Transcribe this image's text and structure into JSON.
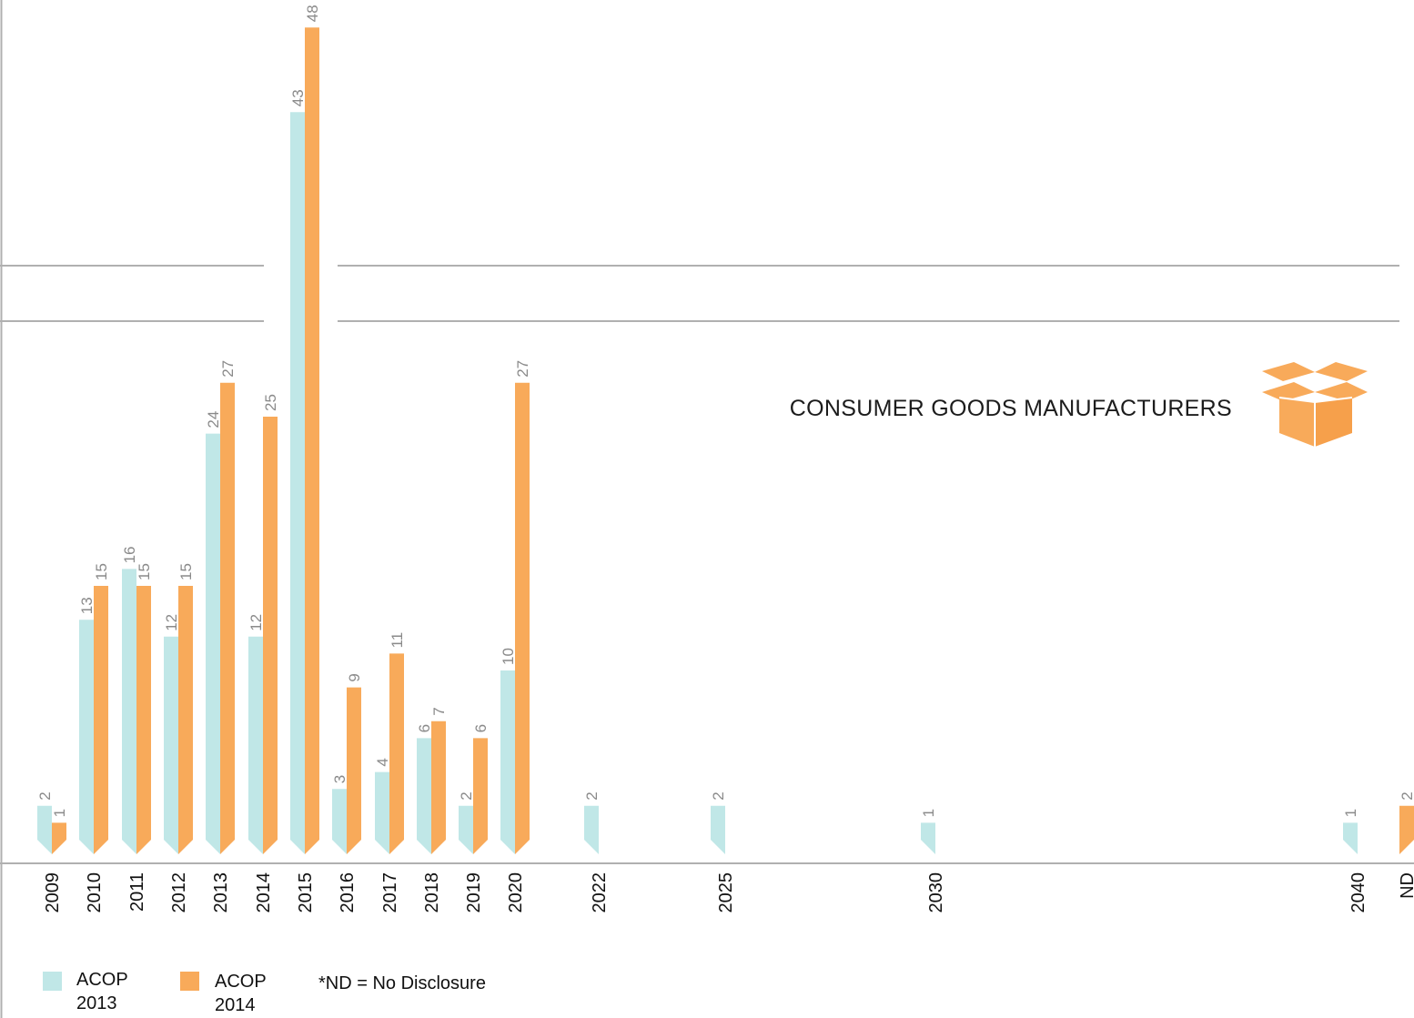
{
  "chart_data": {
    "type": "bar",
    "title": "CONSUMER GOODS MANUFACTURERS",
    "categories": [
      "2009",
      "2010",
      "2011",
      "2012",
      "2013",
      "2014",
      "2015",
      "2016",
      "2017",
      "2018",
      "2019",
      "2020",
      "2022",
      "2025",
      "2030",
      "2040",
      "ND"
    ],
    "series": [
      {
        "name": "ACOP 2013",
        "color": "#c0e7e7",
        "values": [
          2,
          13,
          16,
          12,
          24,
          12,
          43,
          3,
          4,
          6,
          2,
          10,
          2,
          2,
          1,
          1,
          null
        ]
      },
      {
        "name": "ACOP 2014",
        "color": "#f8aa5a",
        "values": [
          1,
          15,
          15,
          15,
          27,
          25,
          48,
          9,
          11,
          7,
          6,
          27,
          null,
          null,
          null,
          null,
          2
        ]
      }
    ],
    "xlabel": "",
    "ylabel": "",
    "ylim": [
      0,
      48
    ],
    "axis_break": true,
    "grid": false,
    "legend_position": "bottom-left",
    "note": "*ND = No Disclosure"
  },
  "legend": {
    "items": [
      {
        "line1": "ACOP",
        "line2": "2013",
        "color": "#c0e7e7"
      },
      {
        "line1": "ACOP",
        "line2": "2014",
        "color": "#f8aa5a"
      }
    ],
    "note": "*ND = No Disclosure"
  },
  "icon": {
    "name": "open-box-icon",
    "color": "#f8aa5a"
  },
  "colors": {
    "axis": "#b0b0b0",
    "text": "#111111",
    "value_label": "#8a8a8a"
  }
}
